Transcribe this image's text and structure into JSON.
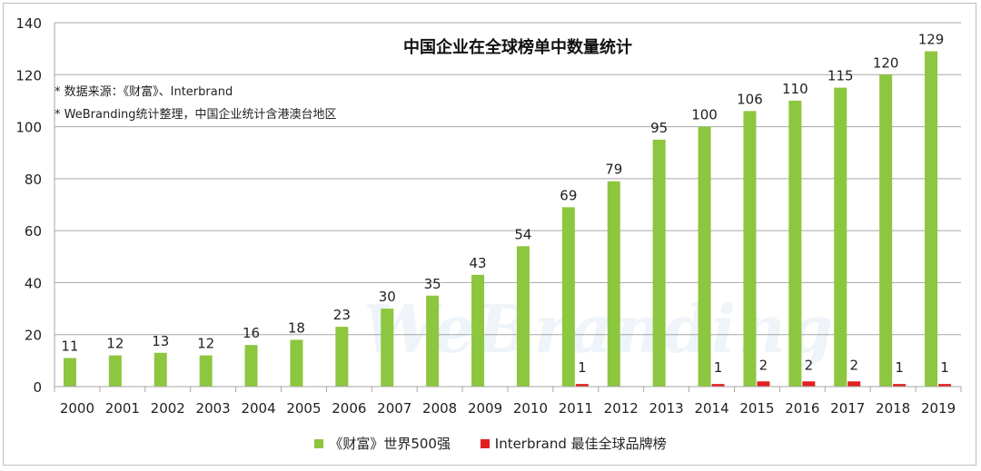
{
  "chart_data": {
    "type": "bar",
    "title": "中国企业在全球榜单中数量统计",
    "notes": [
      "* 数据来源：《财富》、Interbrand",
      "* WeBranding统计整理，中国企业统计含港澳台地区"
    ],
    "watermark": "WeBranding",
    "categories": [
      "2000",
      "2001",
      "2002",
      "2003",
      "2004",
      "2005",
      "2006",
      "2007",
      "2008",
      "2009",
      "2010",
      "2011",
      "2012",
      "2013",
      "2014",
      "2015",
      "2016",
      "2017",
      "2018",
      "2019"
    ],
    "series": [
      {
        "name": "《财富》世界500强",
        "color": "#8dc63f",
        "values": [
          11,
          12,
          13,
          12,
          16,
          18,
          23,
          30,
          35,
          43,
          54,
          69,
          79,
          95,
          100,
          106,
          110,
          115,
          120,
          129
        ]
      },
      {
        "name": "Interbrand 最佳全球品牌榜",
        "color": "#e02020",
        "values": [
          null,
          null,
          null,
          null,
          null,
          null,
          null,
          null,
          null,
          null,
          null,
          1,
          null,
          null,
          1,
          2,
          2,
          2,
          1,
          1
        ]
      }
    ],
    "ylim": [
      0,
      140
    ],
    "yticks": [
      0,
      20,
      40,
      60,
      80,
      100,
      120,
      140
    ],
    "grid": true,
    "legend_position": "bottom"
  }
}
